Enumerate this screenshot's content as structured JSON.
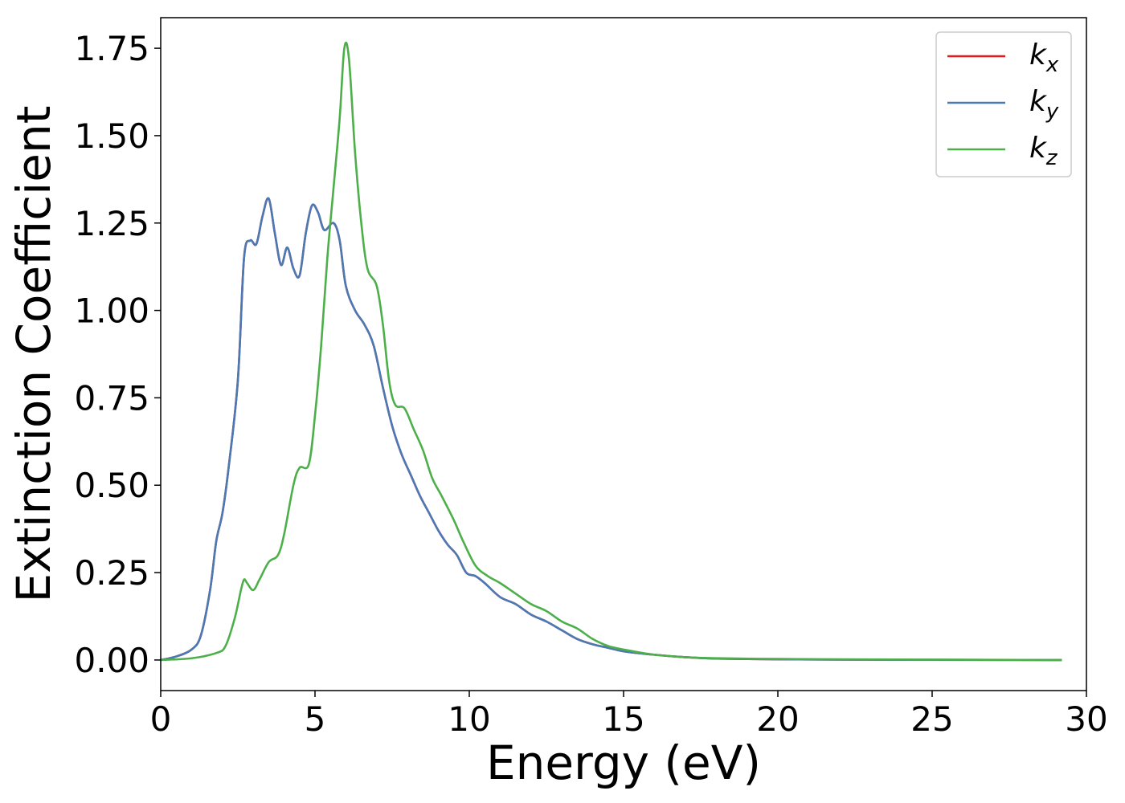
{
  "chart_data": {
    "type": "line",
    "title": "",
    "xlabel": "Energy (eV)",
    "ylabel": "Extinction Coefficient",
    "xlim": [
      0,
      30
    ],
    "ylim": [
      -0.0875,
      1.8375
    ],
    "xticks": [
      0,
      5,
      10,
      15,
      20,
      25,
      30
    ],
    "xtick_labels": [
      "0",
      "5",
      "10",
      "15",
      "20",
      "25",
      "30"
    ],
    "yticks": [
      0,
      0.25,
      0.5,
      0.75,
      1.0,
      1.25,
      1.5,
      1.75
    ],
    "ytick_labels": [
      "0.00",
      "0.25",
      "0.50",
      "0.75",
      "1.00",
      "1.25",
      "1.50",
      "1.75"
    ],
    "grid": false,
    "legend_position": "top-right",
    "series": [
      {
        "name": "k_x",
        "legend_base": "k",
        "legend_sub": "x",
        "color": "#e41a1c",
        "x": [
          0,
          0.5,
          1.0,
          1.3,
          1.6,
          1.8,
          2.0,
          2.2,
          2.5,
          2.7,
          2.9,
          3.1,
          3.3,
          3.5,
          3.7,
          3.9,
          4.1,
          4.3,
          4.5,
          4.7,
          4.9,
          5.1,
          5.3,
          5.6,
          5.8,
          6.0,
          6.3,
          6.6,
          6.9,
          7.2,
          7.5,
          7.8,
          8.1,
          8.4,
          8.7,
          9.0,
          9.3,
          9.6,
          9.9,
          10.2,
          10.5,
          11.0,
          11.5,
          12.0,
          12.5,
          13.0,
          13.5,
          14.0,
          14.5,
          15.0,
          16.0,
          17.0,
          18.0,
          20.0,
          22.0,
          25.0,
          29.2
        ],
        "y": [
          0.0,
          0.01,
          0.03,
          0.07,
          0.2,
          0.34,
          0.42,
          0.55,
          0.8,
          1.15,
          1.2,
          1.19,
          1.27,
          1.32,
          1.22,
          1.13,
          1.18,
          1.12,
          1.1,
          1.22,
          1.3,
          1.28,
          1.23,
          1.25,
          1.2,
          1.07,
          1.0,
          0.96,
          0.9,
          0.78,
          0.67,
          0.59,
          0.53,
          0.47,
          0.42,
          0.37,
          0.33,
          0.3,
          0.25,
          0.24,
          0.22,
          0.18,
          0.16,
          0.13,
          0.11,
          0.085,
          0.06,
          0.045,
          0.035,
          0.025,
          0.015,
          0.008,
          0.004,
          0.002,
          0.001,
          0.0005,
          0.0
        ]
      },
      {
        "name": "k_y",
        "legend_base": "k",
        "legend_sub": "y",
        "color": "#4a7ab5",
        "x": [
          0,
          0.5,
          1.0,
          1.3,
          1.6,
          1.8,
          2.0,
          2.2,
          2.5,
          2.7,
          2.9,
          3.1,
          3.3,
          3.5,
          3.7,
          3.9,
          4.1,
          4.3,
          4.5,
          4.7,
          4.9,
          5.1,
          5.3,
          5.6,
          5.8,
          6.0,
          6.3,
          6.6,
          6.9,
          7.2,
          7.5,
          7.8,
          8.1,
          8.4,
          8.7,
          9.0,
          9.3,
          9.6,
          9.9,
          10.2,
          10.5,
          11.0,
          11.5,
          12.0,
          12.5,
          13.0,
          13.5,
          14.0,
          14.5,
          15.0,
          16.0,
          17.0,
          18.0,
          20.0,
          22.0,
          25.0,
          29.2
        ],
        "y": [
          0.0,
          0.01,
          0.03,
          0.07,
          0.2,
          0.34,
          0.42,
          0.55,
          0.8,
          1.15,
          1.2,
          1.19,
          1.27,
          1.32,
          1.22,
          1.13,
          1.18,
          1.12,
          1.1,
          1.22,
          1.3,
          1.28,
          1.23,
          1.25,
          1.2,
          1.07,
          1.0,
          0.96,
          0.9,
          0.78,
          0.67,
          0.59,
          0.53,
          0.47,
          0.42,
          0.37,
          0.33,
          0.3,
          0.25,
          0.24,
          0.22,
          0.18,
          0.16,
          0.13,
          0.11,
          0.085,
          0.06,
          0.045,
          0.035,
          0.025,
          0.015,
          0.008,
          0.004,
          0.002,
          0.001,
          0.0005,
          0.0
        ]
      },
      {
        "name": "k_z",
        "legend_base": "k",
        "legend_sub": "z",
        "color": "#4daf4a",
        "x": [
          0,
          1.0,
          1.8,
          2.1,
          2.4,
          2.6,
          2.7,
          2.8,
          3.0,
          3.2,
          3.5,
          3.8,
          4.0,
          4.3,
          4.5,
          4.8,
          5.0,
          5.2,
          5.4,
          5.6,
          5.8,
          5.95,
          6.1,
          6.3,
          6.5,
          6.7,
          7.0,
          7.2,
          7.4,
          7.6,
          7.9,
          8.2,
          8.5,
          8.8,
          9.1,
          9.5,
          9.8,
          10.2,
          10.6,
          11.0,
          11.5,
          12.0,
          12.5,
          13.0,
          13.5,
          14.0,
          14.5,
          15.0,
          16.0,
          17.0,
          18.0,
          20.0,
          22.0,
          25.0,
          29.2
        ],
        "y": [
          0.0,
          0.005,
          0.02,
          0.04,
          0.12,
          0.2,
          0.23,
          0.22,
          0.2,
          0.23,
          0.28,
          0.3,
          0.36,
          0.5,
          0.55,
          0.56,
          0.7,
          0.9,
          1.15,
          1.35,
          1.55,
          1.75,
          1.72,
          1.45,
          1.25,
          1.12,
          1.07,
          0.96,
          0.8,
          0.73,
          0.72,
          0.66,
          0.6,
          0.52,
          0.47,
          0.4,
          0.34,
          0.27,
          0.24,
          0.22,
          0.19,
          0.16,
          0.14,
          0.11,
          0.09,
          0.06,
          0.04,
          0.03,
          0.015,
          0.008,
          0.005,
          0.003,
          0.002,
          0.001,
          0.0
        ]
      }
    ]
  }
}
